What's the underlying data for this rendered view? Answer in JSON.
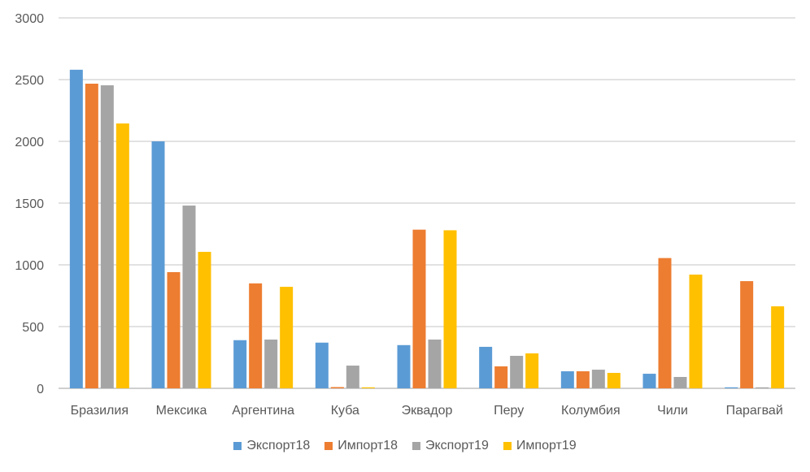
{
  "chart_data": {
    "type": "bar",
    "title": "",
    "xlabel": "",
    "ylabel": "",
    "ylim": [
      0,
      3000
    ],
    "yticks": [
      0,
      500,
      1000,
      1500,
      2000,
      2500,
      3000
    ],
    "grid": true,
    "legend_position": "bottom",
    "categories": [
      "Бразилия",
      "Мексика",
      "Аргентина",
      "Куба",
      "Эквадор",
      "Перу",
      "Колумбия",
      "Чили",
      "Парагвай"
    ],
    "series": [
      {
        "name": "Экспорт18",
        "color": "#5B9BD5",
        "values": [
          2580,
          2000,
          390,
          370,
          350,
          336,
          138,
          118,
          8
        ]
      },
      {
        "name": "Импорт18",
        "color": "#ED7D31",
        "values": [
          2467,
          941,
          850,
          10,
          1285,
          178,
          138,
          1055,
          868
        ]
      },
      {
        "name": "Экспорт19",
        "color": "#A5A5A5",
        "values": [
          2454,
          1480,
          395,
          184,
          395,
          263,
          151,
          92,
          8
        ]
      },
      {
        "name": "Импорт19",
        "color": "#FFC000",
        "values": [
          2145,
          1105,
          822,
          8,
          1280,
          283,
          125,
          921,
          664
        ]
      }
    ]
  }
}
